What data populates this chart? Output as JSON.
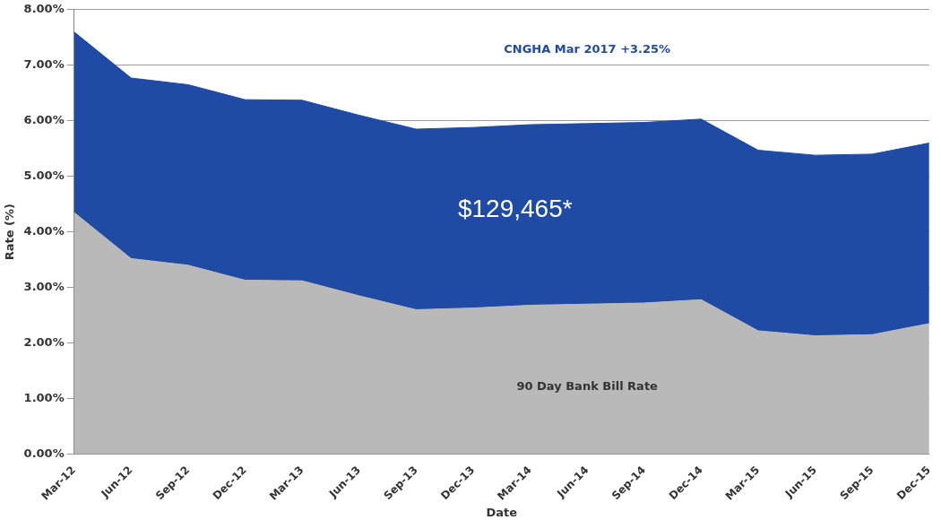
{
  "chart_data": {
    "type": "area",
    "stacked": true,
    "xlabel": "Date",
    "ylabel": "Rate (%)",
    "categories": [
      "Mar-12",
      "Jun-12",
      "Sep-12",
      "Dec-12",
      "Mar-13",
      "Jun-13",
      "Sep-13",
      "Dec-13",
      "Mar-14",
      "Jun-14",
      "Sep-14",
      "Dec-14",
      "Mar-15",
      "Jun-15",
      "Sep-15",
      "Dec-15"
    ],
    "series": [
      {
        "name": "90 Day Bank Bill Rate",
        "color": "#b9b9b9",
        "values": [
          4.35,
          3.52,
          3.4,
          3.13,
          3.12,
          2.85,
          2.6,
          2.63,
          2.68,
          2.7,
          2.72,
          2.78,
          2.22,
          2.13,
          2.15,
          2.35
        ]
      },
      {
        "name": "CNGHA Mar 2017 +3.25%",
        "color": "#1f4ba5",
        "values": [
          3.25,
          3.25,
          3.25,
          3.25,
          3.25,
          3.25,
          3.25,
          3.25,
          3.25,
          3.25,
          3.25,
          3.25,
          3.25,
          3.25,
          3.25,
          3.25
        ]
      }
    ],
    "ylim": [
      0,
      8
    ],
    "yticks": [
      {
        "value": 0,
        "label": "0.00%"
      },
      {
        "value": 1,
        "label": "1.00%"
      },
      {
        "value": 2,
        "label": "2.00%"
      },
      {
        "value": 3,
        "label": "3.00%"
      },
      {
        "value": 4,
        "label": "4.00%"
      },
      {
        "value": 5,
        "label": "5.00%"
      },
      {
        "value": 6,
        "label": "6.00%"
      },
      {
        "value": 7,
        "label": "7.00%"
      },
      {
        "value": 8,
        "label": "8.00%"
      }
    ],
    "grid": "y",
    "annotations": [
      "$129,465*"
    ]
  }
}
